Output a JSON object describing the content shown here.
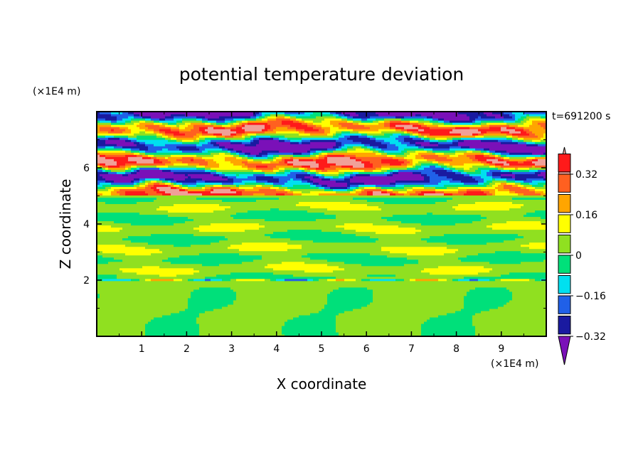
{
  "chart_data": {
    "type": "heatmap",
    "title": "potential temperature deviation",
    "xlabel": "X coordinate",
    "ylabel": "Z coordinate",
    "x_unit": "(×1E4 m)",
    "y_unit": "(×1E4 m)",
    "time_label": "t=691200 s",
    "xlim": [
      0,
      10
    ],
    "ylim": [
      0,
      8
    ],
    "xticks": [
      1,
      2,
      3,
      4,
      5,
      6,
      7,
      8,
      9
    ],
    "yticks": [
      2,
      4,
      6
    ],
    "colorbar": {
      "levels": [
        -0.4,
        -0.32,
        -0.24,
        -0.16,
        -0.08,
        0,
        0.08,
        0.16,
        0.24,
        0.32,
        0.4
      ],
      "tick_labels": [
        "0.32",
        "0.16",
        "0",
        "−0.16",
        "−0.32"
      ],
      "tick_values": [
        0.32,
        0.16,
        0,
        -0.16,
        -0.32
      ],
      "colors": [
        "#7a10b8",
        "#1a1aa0",
        "#2060e8",
        "#00e0f0",
        "#00e07a",
        "#90e020",
        "#ffff00",
        "#ffa500",
        "#ff6020",
        "#ff1a1a",
        "#f0a098"
      ]
    },
    "bands": [
      {
        "z": [
          0.0,
          2.0
        ],
        "description": "lower layer, mostly -0.08 to 0.08 with cellular structure"
      },
      {
        "z": [
          2.0,
          2.15
        ],
        "description": "thin perturbation layer near z=2"
      },
      {
        "z": [
          2.15,
          5.0
        ],
        "description": "middle layer, near 0 with weak banding"
      },
      {
        "z": [
          5.0,
          7.8
        ],
        "description": "upper layer, strong alternating positive/negative streaks"
      }
    ]
  }
}
